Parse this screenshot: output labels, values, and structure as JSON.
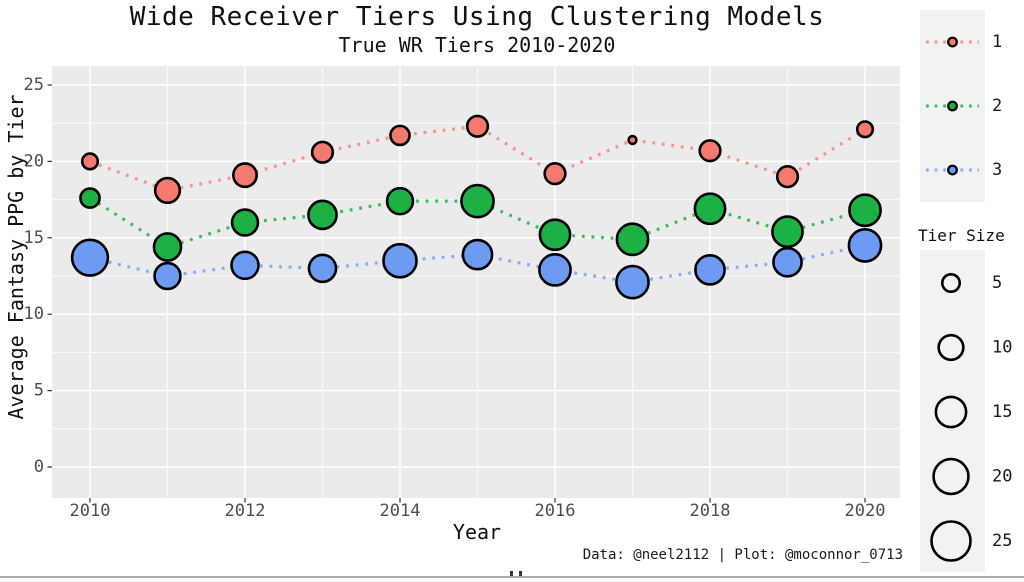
{
  "title": "Wide Receiver Tiers Using Clustering Models",
  "subtitle": "True WR Tiers 2010-2020",
  "caption": "Data: @neel2112 | Plot: @moconnor_0713",
  "axes": {
    "x_label": "Year",
    "y_label": "Average Fantasy PPG by Tier",
    "x_ticks": [
      2010,
      2012,
      2014,
      2016,
      2018,
      2020
    ],
    "y_ticks": [
      0,
      5,
      10,
      15,
      20,
      25
    ]
  },
  "legend": {
    "color_items": [
      {
        "label": "1",
        "fill": "#F4796E",
        "line": "#F6938B"
      },
      {
        "label": "2",
        "fill": "#1DB044",
        "line": "#3BBA5C"
      },
      {
        "label": "3",
        "fill": "#6D9BF1",
        "line": "#86ACF4"
      }
    ],
    "size_title": "Tier Size",
    "size_items": [
      5,
      10,
      15,
      20,
      25
    ]
  },
  "palette": {
    "panel_bg": "#EBEBEB",
    "legend_key_bg": "#F2F2F2",
    "gridline": "#FFFFFF",
    "tick_text": "#4D4D4D",
    "point_stroke": "#000000",
    "tier1_red": "#F4796E",
    "tier2_green": "#1DB044",
    "tier3_blue": "#6D9BF1"
  },
  "chart_data": {
    "type": "scatter",
    "subtype": "bubble-with-dotted-lines",
    "title": "Wide Receiver Tiers Using Clustering Models",
    "subtitle": "True WR Tiers 2010-2020",
    "xlabel": "Year",
    "ylabel": "Average Fantasy PPG by Tier",
    "x": [
      2010,
      2011,
      2012,
      2013,
      2014,
      2015,
      2016,
      2017,
      2018,
      2019,
      2020
    ],
    "series": [
      {
        "name": "1",
        "fill": "#F4796E",
        "line": "#F6938B",
        "ppg": [
          20.0,
          18.1,
          19.1,
          20.6,
          21.7,
          22.3,
          19.2,
          21.4,
          20.7,
          19.0,
          22.1
        ],
        "tier_size": [
          4,
          10,
          9,
          7,
          6,
          7,
          7,
          1,
          7,
          7,
          4
        ]
      },
      {
        "name": "2",
        "fill": "#1DB044",
        "line": "#3BBA5C",
        "ppg": [
          17.6,
          14.4,
          16.0,
          16.5,
          17.4,
          17.4,
          15.2,
          14.9,
          16.9,
          15.4,
          16.8
        ],
        "tier_size": [
          6,
          12,
          11,
          13,
          11,
          17,
          15,
          16,
          15,
          15,
          16
        ]
      },
      {
        "name": "3",
        "fill": "#6D9BF1",
        "line": "#86ACF4",
        "ppg": [
          13.7,
          12.5,
          13.2,
          13.0,
          13.5,
          13.9,
          12.9,
          12.1,
          12.9,
          13.4,
          14.5
        ],
        "tier_size": [
          21,
          11,
          12,
          12,
          18,
          14,
          16,
          17,
          14,
          13,
          17
        ]
      }
    ],
    "x_ticks": [
      2010,
      2012,
      2014,
      2016,
      2018,
      2020
    ],
    "y_ticks": [
      0,
      5,
      10,
      15,
      20,
      25
    ],
    "xlim": [
      2009.5,
      2020.45
    ],
    "ylim": [
      -2,
      26.2
    ],
    "grid": true,
    "legend_position": "right",
    "size_legend": {
      "title": "Tier Size",
      "values": [
        5,
        10,
        15,
        20,
        25
      ]
    }
  }
}
